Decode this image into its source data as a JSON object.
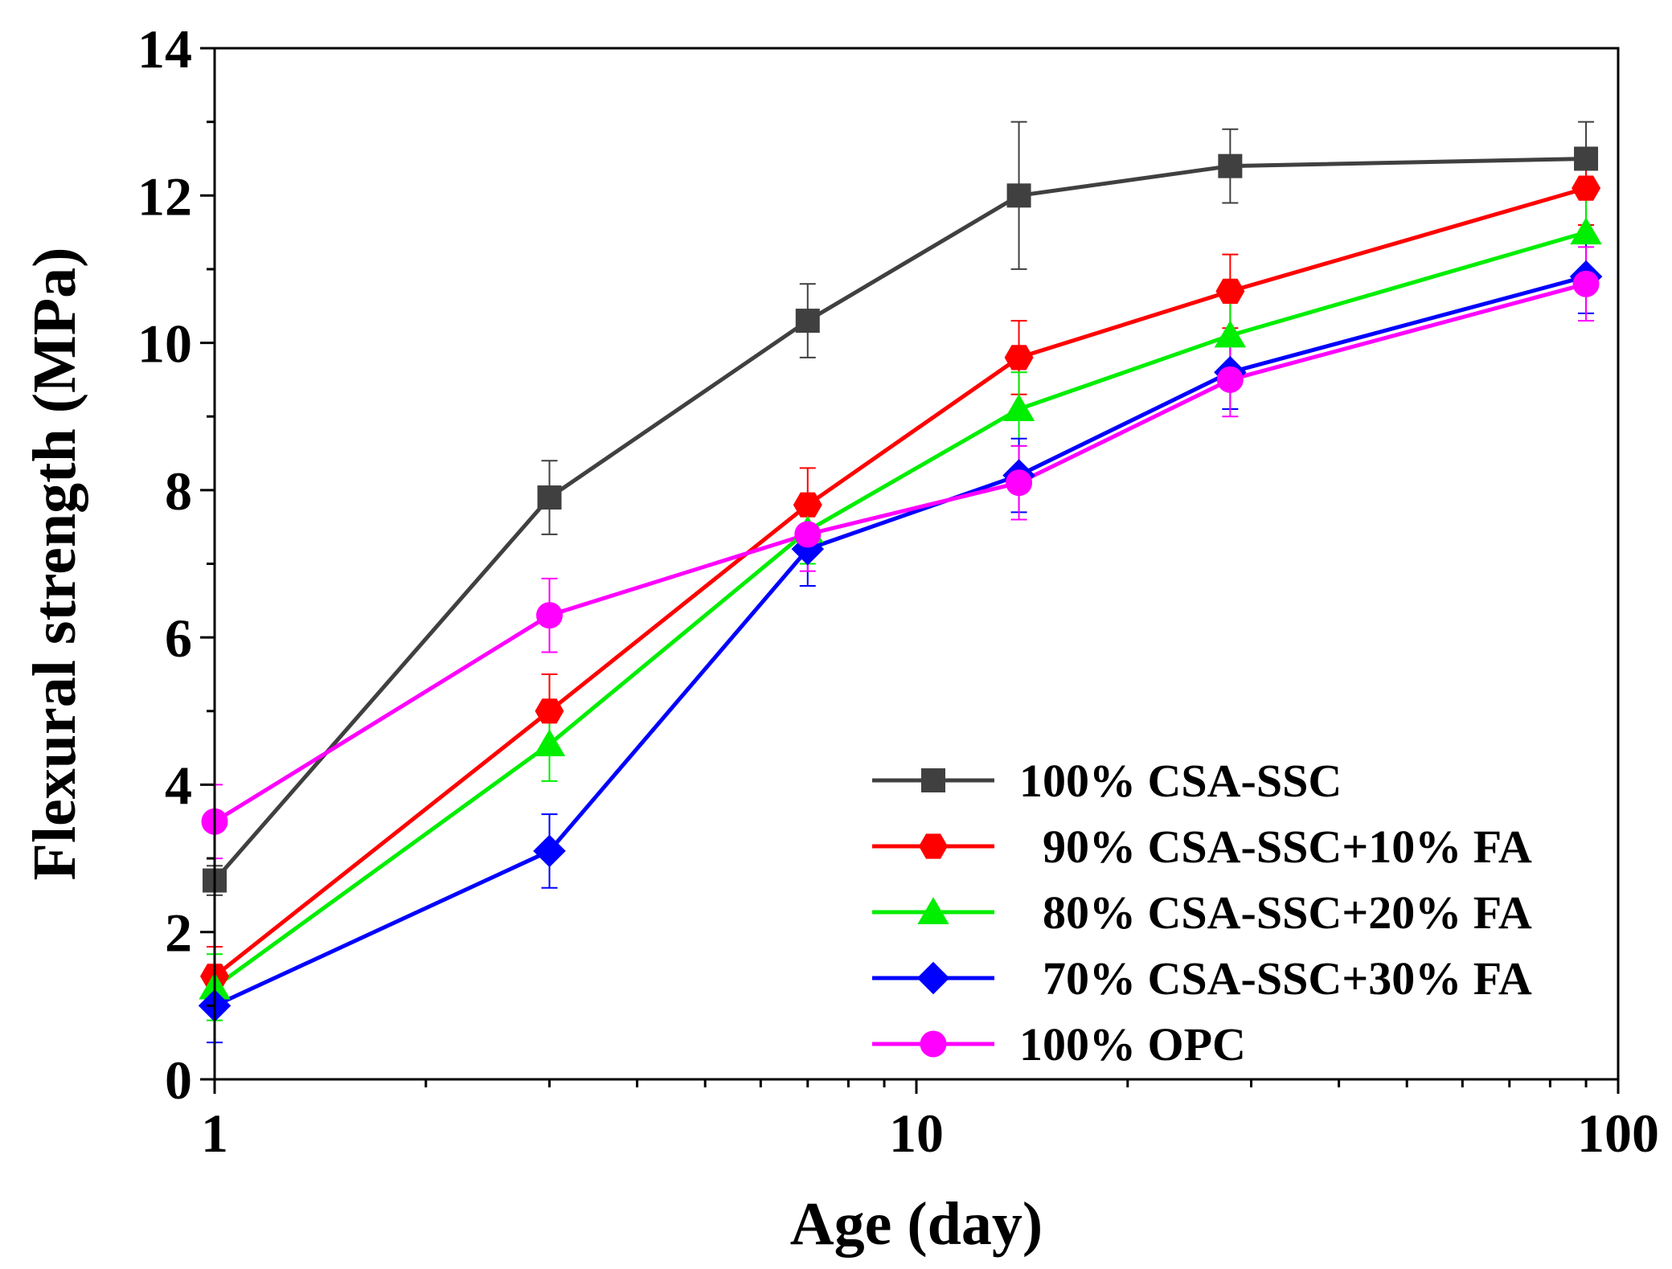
{
  "chart_data": {
    "type": "line",
    "x_scale": "log",
    "xlabel": "Age (day)",
    "ylabel": "Flexural strength (MPa)",
    "xlim": [
      1,
      100
    ],
    "ylim": [
      0,
      14
    ],
    "x_ticks": [
      1,
      10,
      100
    ],
    "x_tick_labels": [
      "1",
      "10",
      "100"
    ],
    "y_ticks": [
      0,
      2,
      4,
      6,
      8,
      10,
      12,
      14
    ],
    "y_tick_labels": [
      "0",
      "2",
      "4",
      "6",
      "8",
      "10",
      "12",
      "14"
    ],
    "legend_position": "bottom-right",
    "x": [
      1,
      3,
      7,
      14,
      28,
      90
    ],
    "series": [
      {
        "name": "100% CSA-SSC",
        "color": "#404040",
        "marker": "square",
        "values": [
          2.7,
          7.9,
          10.3,
          12.0,
          12.4,
          12.5
        ],
        "errors": [
          0.2,
          0.5,
          0.5,
          1.0,
          0.5,
          0.5
        ]
      },
      {
        "name": "90% CSA-SSC+10% FA",
        "color": "#ff0000",
        "marker": "hexagon",
        "values": [
          1.4,
          5.0,
          7.8,
          9.8,
          10.7,
          12.1
        ],
        "errors": [
          0.4,
          0.5,
          0.5,
          0.5,
          0.5,
          0.5
        ]
      },
      {
        "name": "80% CSA-SSC+20% FA",
        "color": "#00ee00",
        "marker": "triangle",
        "values": [
          1.25,
          4.55,
          7.45,
          9.1,
          10.1,
          11.5
        ],
        "errors": [
          0.45,
          0.5,
          0.45,
          0.5,
          0.5,
          0.5
        ]
      },
      {
        "name": "70% CSA-SSC+30% FA",
        "color": "#0000ff",
        "marker": "diamond",
        "values": [
          1.0,
          3.1,
          7.2,
          8.2,
          9.6,
          10.9
        ],
        "errors": [
          0.5,
          0.5,
          0.5,
          0.5,
          0.5,
          0.5
        ]
      },
      {
        "name": "100% OPC",
        "color": "#ff00ff",
        "marker": "circle",
        "values": [
          3.5,
          6.3,
          7.4,
          8.1,
          9.5,
          10.8
        ],
        "errors": [
          0.5,
          0.5,
          0.5,
          0.5,
          0.5,
          0.5
        ]
      }
    ],
    "legend_labels": [
      "100% CSA-SSC",
      "  90% CSA-SSC+10% FA",
      "  80% CSA-SSC+20% FA",
      "  70% CSA-SSC+30% FA",
      "100% OPC"
    ]
  }
}
